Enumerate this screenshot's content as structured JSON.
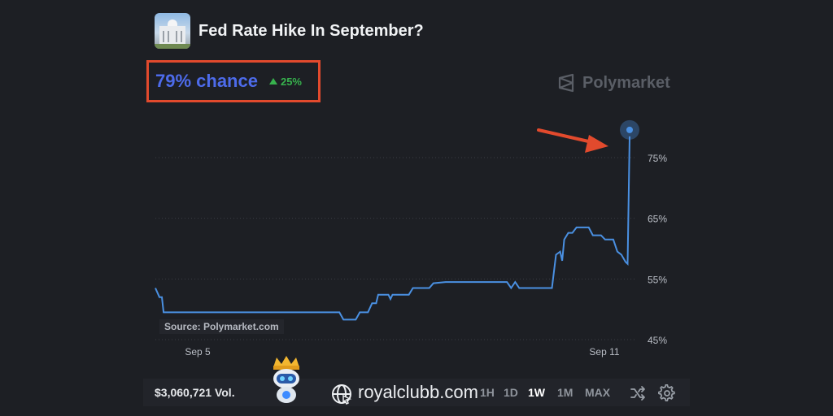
{
  "market": {
    "title": "Fed Rate Hike In September?",
    "thumbnail_icon": "federal-reserve-building-icon",
    "chance_label": "79% chance",
    "change_label": "25%",
    "change_direction": "up",
    "accent_color": "#4d6bea",
    "change_color": "#37b24d",
    "highlight_color": "#e24a2d"
  },
  "brand": {
    "name": "Polymarket",
    "logo_icon": "polymarket-logo-icon"
  },
  "source_label": "Source: Polymarket.com",
  "chart_data": {
    "type": "line",
    "x_ticks": [
      "Sep 5",
      "Sep 11"
    ],
    "y_ticks": [
      "75%",
      "65%",
      "55%",
      "45%"
    ],
    "y_tick_values": [
      75,
      65,
      55,
      45
    ],
    "ylim": [
      45,
      75
    ],
    "grid": true,
    "line_color": "#4a90e2",
    "series": [
      {
        "values": [
          [
            0,
            53.5
          ],
          [
            1,
            52.0
          ],
          [
            1.6,
            52.0
          ],
          [
            2,
            49.5
          ],
          [
            16,
            49.5
          ],
          [
            30,
            49.5
          ],
          [
            45,
            49.5
          ],
          [
            46,
            48.3
          ],
          [
            49,
            48.3
          ],
          [
            50,
            49.5
          ],
          [
            52,
            49.5
          ],
          [
            53,
            51.0
          ],
          [
            54,
            51.0
          ],
          [
            54.5,
            52.4
          ],
          [
            57,
            52.4
          ],
          [
            57.5,
            51.7
          ],
          [
            58,
            52.4
          ],
          [
            62,
            52.4
          ],
          [
            63,
            53.5
          ],
          [
            67,
            53.5
          ],
          [
            68,
            54.3
          ],
          [
            71,
            54.5
          ],
          [
            80,
            54.5
          ],
          [
            86,
            54.5
          ],
          [
            87,
            53.5
          ],
          [
            88,
            54.5
          ],
          [
            89,
            53.5
          ],
          [
            97,
            53.5
          ],
          [
            98,
            59.0
          ],
          [
            99,
            59.5
          ],
          [
            99.5,
            58.0
          ],
          [
            100,
            61.5
          ],
          [
            101,
            62.6
          ],
          [
            102,
            62.6
          ],
          [
            103,
            63.5
          ],
          [
            106,
            63.5
          ],
          [
            107,
            62.2
          ],
          [
            109,
            62.2
          ],
          [
            110,
            61.5
          ],
          [
            112,
            61.5
          ],
          [
            113,
            59.5
          ],
          [
            114,
            59.0
          ],
          [
            115,
            57.8
          ],
          [
            115.5,
            57.5
          ],
          [
            116,
            78.5
          ]
        ]
      }
    ],
    "current_value": 79,
    "volume_label": "$3,060,721 Vol."
  },
  "timeframes": [
    {
      "label": "1H",
      "active": false
    },
    {
      "label": "1D",
      "active": false
    },
    {
      "label": "1W",
      "active": true
    },
    {
      "label": "1M",
      "active": false
    },
    {
      "label": "MAX",
      "active": false
    }
  ],
  "watermark": {
    "text": "royalclubb.com",
    "icon": "globe-icon",
    "mascot_icon": "robot-king-mascot-icon"
  },
  "controls": {
    "shuffle_icon": "shuffle-icon",
    "settings_icon": "gear-icon"
  }
}
